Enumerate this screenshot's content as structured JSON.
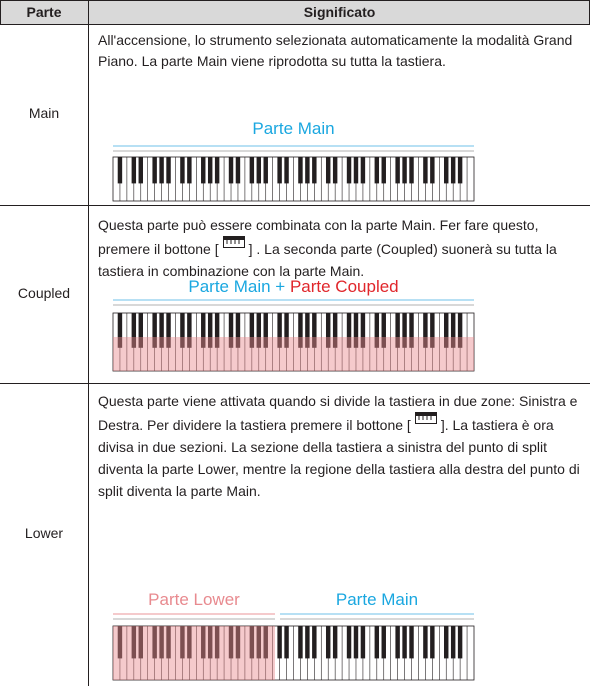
{
  "table": {
    "header": [
      "Parte",
      "Significato"
    ],
    "rows": [
      {
        "part": "Main",
        "text": "All'accensione, lo strumento selezionata automaticamente la modalità Grand Piano. La parte Main viene riprodotta su tutta la tastiera.",
        "labels": [
          "Parte Main"
        ]
      },
      {
        "part": "Coupled",
        "text_before": "Questa parte può essere combinata con la parte Main. Fer fare questo, premere il bottone [",
        "text_after": "] . La seconda parte (Coupled) suonerà su tutta la tastiera in combinazione con la parte Main.",
        "labels": [
          "Parte Main +",
          "Parte Coupled"
        ]
      },
      {
        "part": "Lower",
        "text_before": "Questa parte viene attivata quando si divide la tastiera in due zone: Sinistra e Destra. Per dividere la tastiera premere il bottone [",
        "text_after": "]. La tastiera è ora divisa in due sezioni.  La sezione della tastiera a sinistra del punto di split diventa la parte Lower, mentre la regione della tastiera alla destra del punto di split diventa la parte Main.",
        "labels": [
          "Parte Lower",
          "Parte Main"
        ]
      }
    ]
  }
}
